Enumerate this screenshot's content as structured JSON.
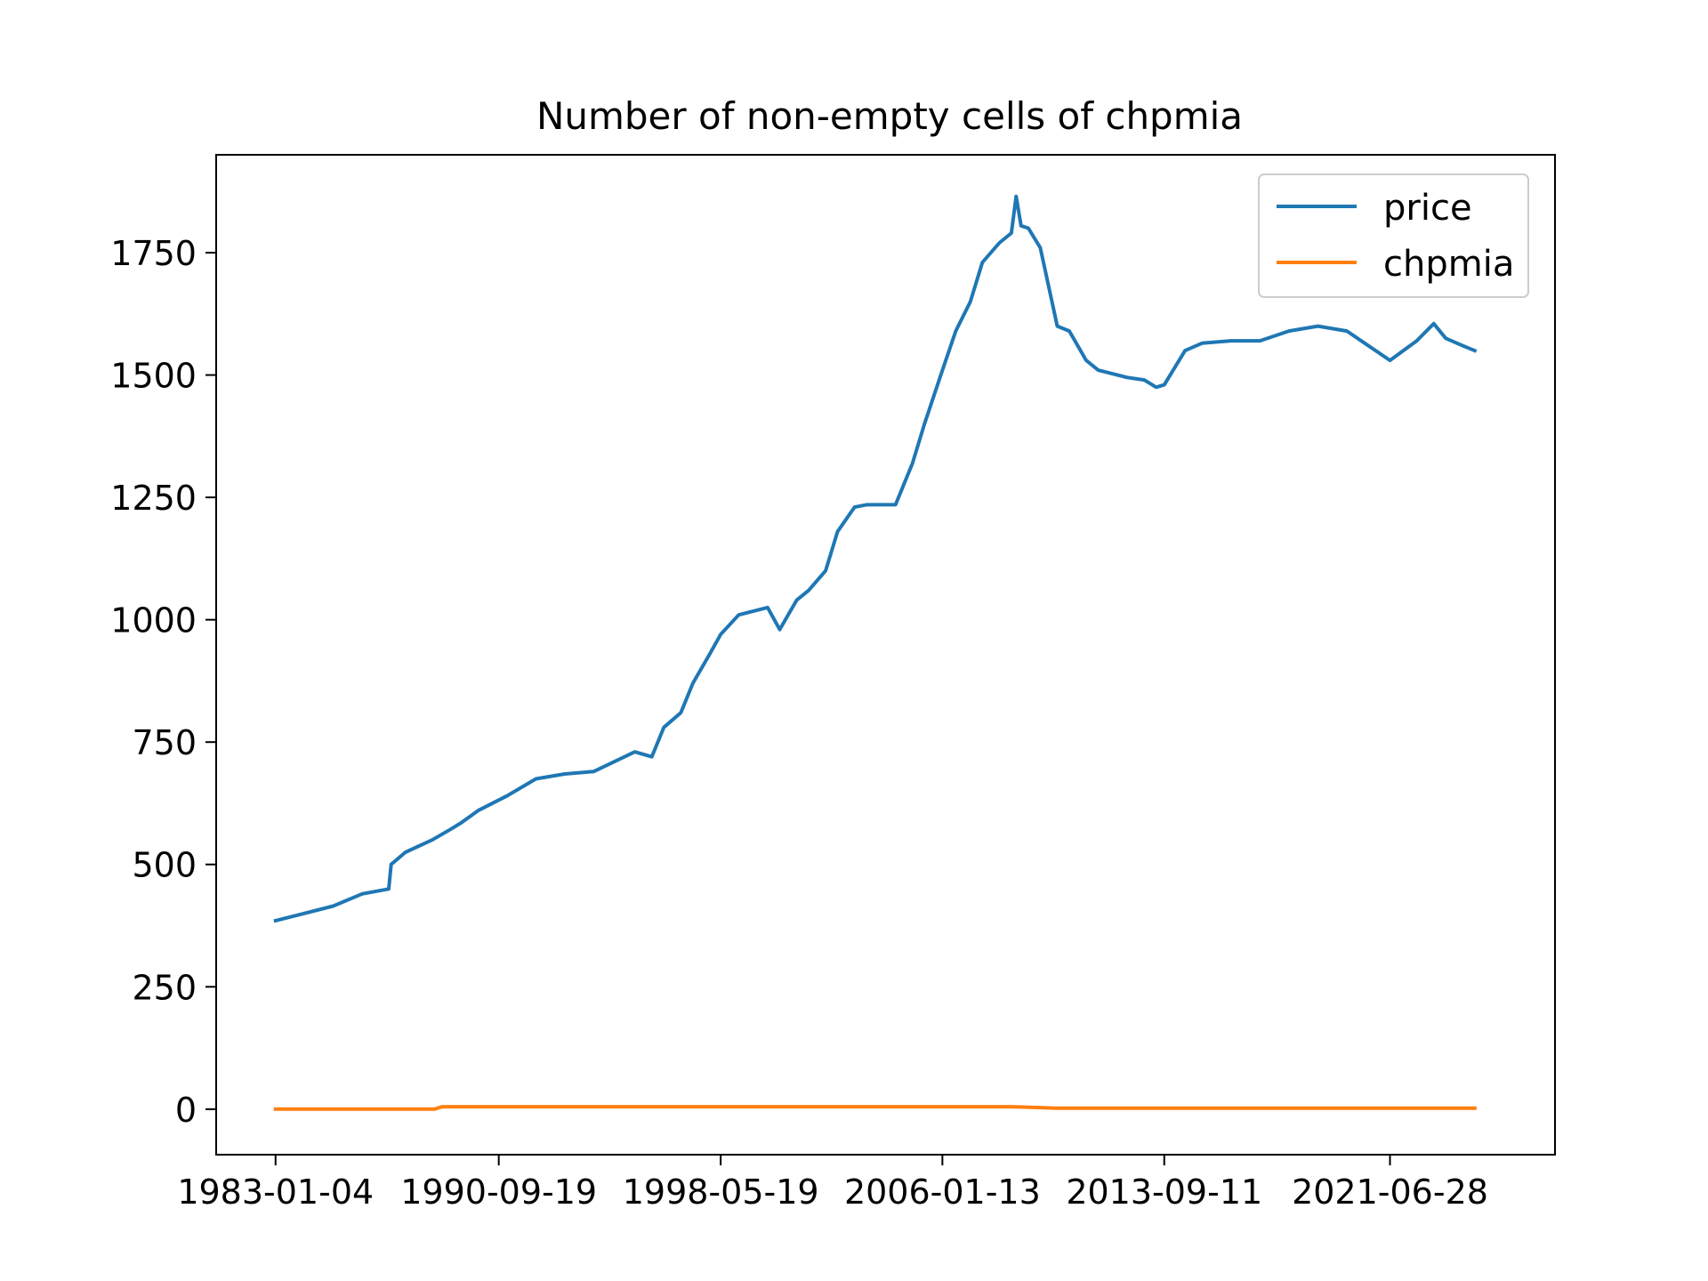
{
  "chart_data": {
    "type": "line",
    "title": "Number of non-empty cells of chpmia",
    "xlabel": "",
    "ylabel": "",
    "x_tick_labels": [
      "1983-01-04",
      "1990-09-19",
      "1998-05-19",
      "2006-01-13",
      "2013-09-11",
      "2021-06-28"
    ],
    "y_ticks": [
      0,
      250,
      500,
      750,
      1000,
      1250,
      1500,
      1750
    ],
    "xlim": [
      "1980-12-16",
      "2027-03-10"
    ],
    "ylim": [
      -93,
      1950
    ],
    "grid": false,
    "legend": {
      "position": "upper right",
      "entries": [
        "price",
        "chpmia"
      ]
    },
    "series": [
      {
        "name": "price",
        "color": "#1f77b4",
        "x": [
          "1983-01-04",
          "1984-01-01",
          "1985-01-01",
          "1986-01-01",
          "1986-12-01",
          "1987-01-01",
          "1987-07-01",
          "1988-06-01",
          "1989-01-01",
          "1989-06-01",
          "1990-01-01",
          "1991-01-01",
          "1992-01-01",
          "1993-01-01",
          "1994-01-01",
          "1995-06-01",
          "1996-01-01",
          "1996-06-01",
          "1997-01-01",
          "1997-06-01",
          "1998-01-01",
          "1998-05-19",
          "1999-01-01",
          "2000-01-01",
          "2000-06-01",
          "2001-01-01",
          "2001-06-01",
          "2002-01-01",
          "2002-06-01",
          "2003-01-01",
          "2003-06-01",
          "2004-06-01",
          "2005-01-01",
          "2005-06-01",
          "2006-01-13",
          "2006-07-01",
          "2007-01-01",
          "2007-06-01",
          "2008-01-01",
          "2008-06-01",
          "2008-08-01",
          "2008-10-01",
          "2009-01-01",
          "2009-06-01",
          "2010-01-01",
          "2010-06-01",
          "2011-01-01",
          "2011-06-01",
          "2012-06-01",
          "2013-01-01",
          "2013-06-01",
          "2013-09-11",
          "2014-06-01",
          "2015-01-01",
          "2016-01-01",
          "2017-01-01",
          "2018-01-01",
          "2019-01-01",
          "2020-01-01",
          "2021-06-28",
          "2022-06-01",
          "2023-01-01",
          "2023-06-01",
          "2024-01-01",
          "2024-06-01"
        ],
        "values": [
          385,
          400,
          415,
          440,
          450,
          500,
          525,
          550,
          570,
          585,
          610,
          640,
          675,
          685,
          690,
          730,
          720,
          780,
          810,
          870,
          930,
          970,
          1010,
          1025,
          980,
          1040,
          1060,
          1100,
          1180,
          1230,
          1235,
          1235,
          1320,
          1400,
          1510,
          1590,
          1650,
          1730,
          1770,
          1790,
          1865,
          1805,
          1800,
          1760,
          1600,
          1590,
          1530,
          1510,
          1495,
          1490,
          1475,
          1480,
          1550,
          1565,
          1570,
          1570,
          1590,
          1600,
          1590,
          1530,
          1570,
          1605,
          1575,
          1560,
          1550
        ]
      },
      {
        "name": "chpmia",
        "color": "#ff7f0e",
        "x": [
          "1983-01-04",
          "1988-07-01",
          "1988-10-01",
          "2008-06-01",
          "2010-01-01",
          "2024-06-01"
        ],
        "values": [
          0,
          0,
          5,
          5,
          2,
          2
        ]
      }
    ]
  }
}
